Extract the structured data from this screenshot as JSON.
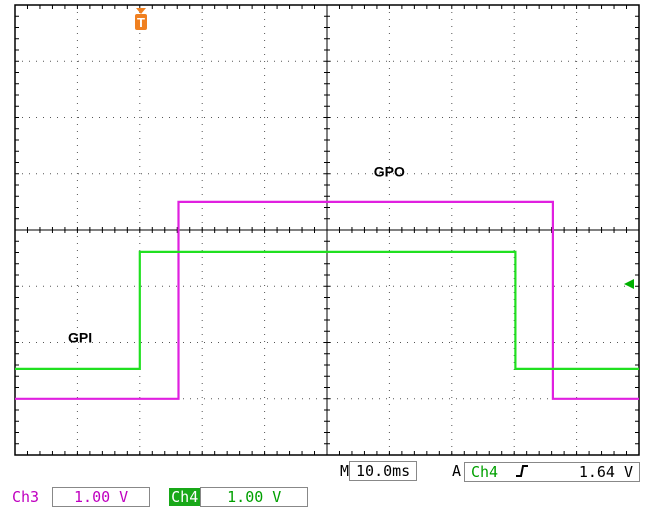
{
  "chart_data": {
    "type": "line",
    "title": "",
    "xlabel": "",
    "ylabel": "",
    "grid": true,
    "x_divisions": 10,
    "y_divisions": 8,
    "xlim": [
      0,
      10
    ],
    "ylim": [
      0,
      8
    ],
    "series": [
      {
        "name": "GPO",
        "color": "#e020e0",
        "x": [
          0,
          2.62,
          2.62,
          8.62,
          8.62,
          10
        ],
        "y": [
          1.0,
          1.0,
          4.5,
          4.5,
          1.0,
          1.0
        ]
      },
      {
        "name": "GPI",
        "color": "#20e020",
        "x": [
          0,
          2.0,
          2.0,
          8.02,
          8.02,
          10
        ],
        "y": [
          1.53,
          1.53,
          3.61,
          3.61,
          1.53,
          1.53
        ]
      }
    ],
    "annotations": [
      {
        "text": "GPO",
        "x": 5.75,
        "y": 4.95
      },
      {
        "text": "GPI",
        "x": 0.85,
        "y": 2.0
      }
    ]
  },
  "trigger_marker": {
    "label": "T",
    "color": "#f08020"
  },
  "readout": {
    "timebase_prefix": "M",
    "timebase": "10.0ms",
    "trigger_mode": "A",
    "trigger_source": "Ch4",
    "trigger_slope_icon": "rising-edge-icon",
    "trigger_level": "1.64 V",
    "ch3_label": "Ch3",
    "ch3_scale": "1.00 V",
    "ch4_label": "Ch4",
    "ch4_scale": "1.00 V"
  }
}
